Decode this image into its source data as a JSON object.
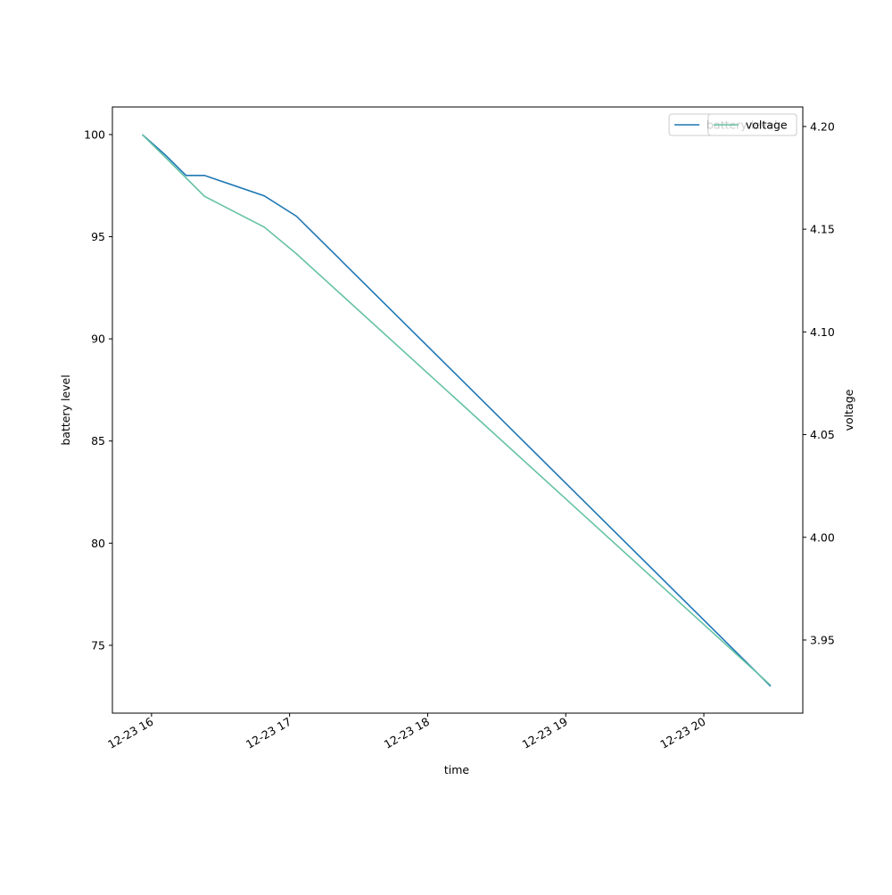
{
  "chart_data": {
    "type": "line",
    "x_label": "time",
    "y_label": "battery level",
    "y2_label": "voltage",
    "x": [
      "12-23 15:56",
      "12-23 16:06",
      "12-23 16:15",
      "12-23 16:23",
      "12-23 16:49",
      "12-23 17:03",
      "12-23 20:29"
    ],
    "series": [
      {
        "name": "battery level",
        "color": "#1f77b4",
        "values": [
          100,
          99,
          98,
          98,
          97,
          96,
          73
        ]
      },
      {
        "name": "voltage",
        "color": "#66c2a5",
        "axis": "y2",
        "values": [
          4.196,
          4.185,
          4.175,
          4.166,
          4.151,
          4.138,
          3.928
        ]
      }
    ],
    "xlim": [
      "12-23 15:43",
      "12-23 20:43"
    ],
    "xticks": [
      {
        "value": "12-23 16:00",
        "label": "12-23 16"
      },
      {
        "value": "12-23 17:00",
        "label": "12-23 17"
      },
      {
        "value": "12-23 18:00",
        "label": "12-23 18"
      },
      {
        "value": "12-23 19:00",
        "label": "12-23 19"
      },
      {
        "value": "12-23 20:00",
        "label": "12-23 20"
      }
    ],
    "ylim": [
      71.68,
      101.35
    ],
    "yticks": [
      75,
      80,
      85,
      90,
      95,
      100
    ],
    "y2lim": [
      3.9144,
      4.2095
    ],
    "y2ticks": [
      3.95,
      {
        "value": 4.0,
        "label": "4.00"
      },
      4.05,
      {
        "value": 4.1,
        "label": "4.10"
      },
      4.15,
      {
        "value": 4.2,
        "label": "4.20"
      }
    ],
    "legend": "upper right",
    "grid": false
  }
}
